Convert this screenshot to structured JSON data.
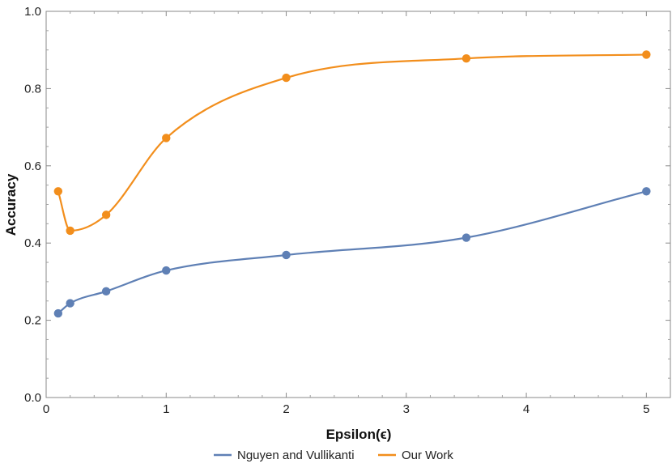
{
  "chart_data": {
    "type": "line",
    "xlabel": "Epsilon(ϵ)",
    "ylabel": "Accuracy",
    "xlim": [
      0,
      5.2
    ],
    "ylim": [
      0,
      1.0
    ],
    "x_ticks": [
      0,
      1,
      2,
      3,
      4,
      5
    ],
    "x_tick_labels": [
      "0",
      "1",
      "2",
      "3",
      "4",
      "5"
    ],
    "y_ticks": [
      0,
      0.2,
      0.4,
      0.6,
      0.8,
      1.0
    ],
    "y_tick_labels": [
      "0.0",
      "0.2",
      "0.4",
      "0.6",
      "0.8",
      "1.0"
    ],
    "grid": false,
    "legend_position": "bottom-center",
    "series": [
      {
        "name": "Nguyen and Vullikanti",
        "color": "#5f80b5",
        "x": [
          0.1,
          0.2,
          0.5,
          1,
          2,
          3.5,
          5
        ],
        "y": [
          0.218,
          0.244,
          0.275,
          0.329,
          0.369,
          0.414,
          0.534
        ]
      },
      {
        "name": "Our Work",
        "color": "#f28e1c",
        "x": [
          0.1,
          0.2,
          0.5,
          1,
          2,
          3.5,
          5
        ],
        "y": [
          0.534,
          0.432,
          0.473,
          0.672,
          0.828,
          0.878,
          0.888
        ]
      }
    ]
  }
}
